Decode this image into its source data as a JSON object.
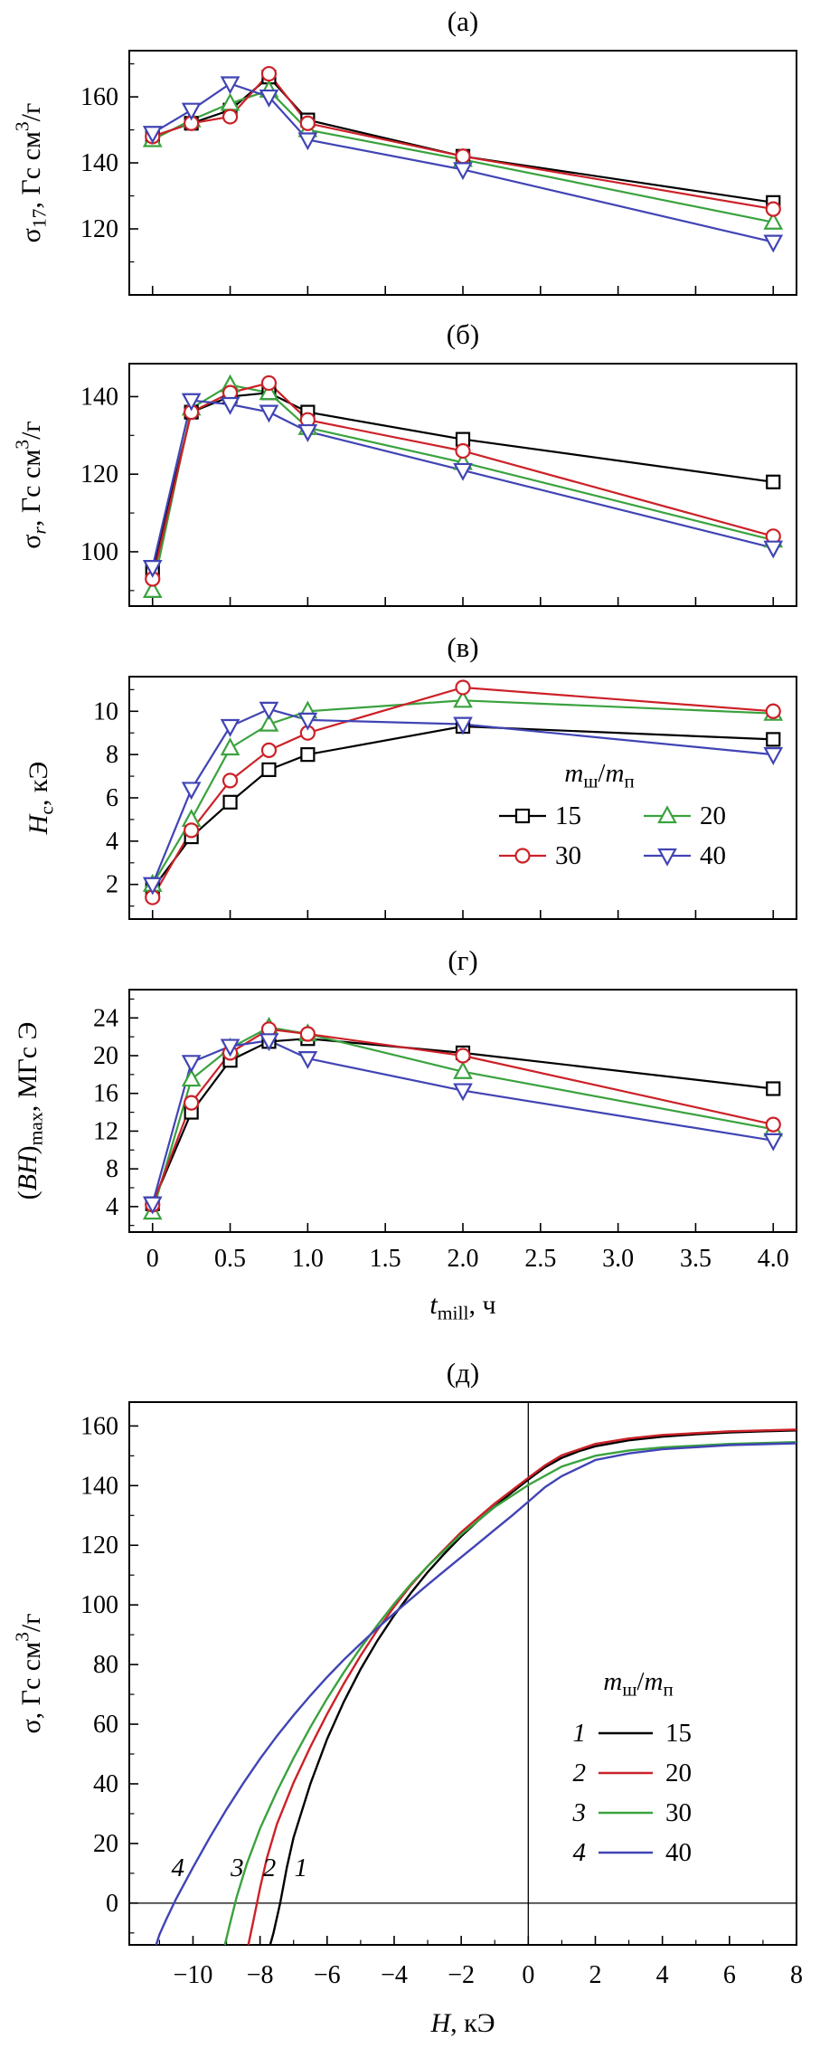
{
  "colors": {
    "black": "#000000",
    "red": "#cc2128",
    "green": "#3aa23e",
    "blue": "#4144b4"
  },
  "chart_data": [
    {
      "id": "a",
      "type": "line",
      "title": "(а)",
      "ylabel": [
        {
          "t": "σ"
        },
        {
          "t": "17",
          "s": "sub"
        },
        {
          "t": ", Гс см"
        },
        {
          "t": "3",
          "s": "sup"
        },
        {
          "t": "/г"
        }
      ],
      "ylim": [
        100,
        174
      ],
      "yticks": [
        120,
        140,
        160
      ],
      "ytick_labels": [
        "120",
        "140",
        "160"
      ],
      "xlim": [
        -0.15,
        4.15
      ],
      "xticks": [
        0,
        0.5,
        1,
        1.5,
        2,
        2.5,
        3,
        3.5,
        4
      ],
      "x": [
        0,
        0.25,
        0.5,
        0.75,
        1,
        2,
        4
      ],
      "series": [
        {
          "name": "15",
          "color_key": "black",
          "marker": "square",
          "values": [
            148,
            152,
            156,
            166,
            153,
            142,
            128
          ]
        },
        {
          "name": "20",
          "color_key": "green",
          "marker": "triangle-up",
          "values": [
            147,
            153,
            158,
            162,
            150,
            141,
            122
          ]
        },
        {
          "name": "30",
          "color_key": "red",
          "marker": "circle",
          "values": [
            148,
            152,
            154,
            167,
            152,
            142,
            126
          ]
        },
        {
          "name": "40",
          "color_key": "blue",
          "marker": "triangle-down",
          "values": [
            149,
            156,
            164,
            160,
            147,
            138,
            116
          ]
        }
      ]
    },
    {
      "id": "b",
      "type": "line",
      "title": "(б)",
      "ylabel": [
        {
          "t": "σ"
        },
        {
          "t": "r",
          "s": "isub"
        },
        {
          "t": ", Гс см"
        },
        {
          "t": "3",
          "s": "sup"
        },
        {
          "t": "/г"
        }
      ],
      "ylim": [
        86,
        148.5
      ],
      "yticks": [
        100,
        120,
        140
      ],
      "ytick_labels": [
        "100",
        "120",
        "140"
      ],
      "xlim": [
        -0.15,
        4.15
      ],
      "xticks": [
        0,
        0.5,
        1,
        1.5,
        2,
        2.5,
        3,
        3.5,
        4
      ],
      "x": [
        0,
        0.25,
        0.5,
        0.75,
        1,
        2,
        4
      ],
      "series": [
        {
          "name": "15",
          "color_key": "black",
          "marker": "square",
          "values": [
            95,
            136,
            140,
            141,
            136,
            129,
            118
          ]
        },
        {
          "name": "20",
          "color_key": "green",
          "marker": "triangle-up",
          "values": [
            90,
            137,
            143,
            141,
            132,
            123,
            103
          ]
        },
        {
          "name": "30",
          "color_key": "red",
          "marker": "circle",
          "values": [
            93,
            136,
            141,
            143.5,
            134,
            126,
            104
          ]
        },
        {
          "name": "40",
          "color_key": "blue",
          "marker": "triangle-down",
          "values": [
            96,
            139,
            138,
            136,
            131,
            121,
            101
          ]
        }
      ]
    },
    {
      "id": "c",
      "type": "line",
      "title": "(в)",
      "ylabel": [
        {
          "t": "H",
          "s": "i"
        },
        {
          "t": "c",
          "s": "sub"
        },
        {
          "t": ", кЭ"
        }
      ],
      "ylim": [
        0.4,
        11.6
      ],
      "yticks": [
        2,
        4,
        6,
        8,
        10
      ],
      "ytick_labels": [
        "2",
        "4",
        "6",
        "8",
        "10"
      ],
      "xlim": [
        -0.15,
        4.15
      ],
      "xticks": [
        0,
        0.5,
        1,
        1.5,
        2,
        2.5,
        3,
        3.5,
        4
      ],
      "x": [
        0,
        0.25,
        0.5,
        0.75,
        1,
        2,
        4
      ],
      "series": [
        {
          "name": "15",
          "color_key": "black",
          "marker": "square",
          "values": [
            1.8,
            4.2,
            5.8,
            7.3,
            8.0,
            9.3,
            8.7
          ]
        },
        {
          "name": "20",
          "color_key": "green",
          "marker": "triangle-up",
          "values": [
            2.0,
            5.0,
            8.3,
            9.4,
            10.0,
            10.5,
            9.9
          ]
        },
        {
          "name": "30",
          "color_key": "red",
          "marker": "circle",
          "values": [
            1.4,
            4.5,
            6.8,
            8.2,
            9.0,
            11.1,
            10.0
          ]
        },
        {
          "name": "40",
          "color_key": "blue",
          "marker": "triangle-down",
          "values": [
            2.0,
            6.4,
            9.3,
            10.1,
            9.6,
            9.4,
            8.0
          ]
        }
      ],
      "legend": {
        "header": [
          {
            "t": "m",
            "s": "i"
          },
          {
            "t": "ш",
            "s": "sub"
          },
          {
            "t": "/"
          },
          {
            "t": "m",
            "s": "i"
          },
          {
            "t": "п",
            "s": "sub"
          }
        ],
        "items": [
          {
            "label": "15"
          },
          {
            "label": "20"
          },
          {
            "label": "30"
          },
          {
            "label": "40"
          }
        ]
      }
    },
    {
      "id": "d",
      "type": "line",
      "title": "(г)",
      "ylabel": [
        {
          "t": "("
        },
        {
          "t": "BH",
          "s": "i"
        },
        {
          "t": ")"
        },
        {
          "t": "max",
          "s": "sub"
        },
        {
          "t": ", МГс Э"
        }
      ],
      "xlabel": [
        {
          "t": "t",
          "s": "i"
        },
        {
          "t": "mill",
          "s": "sub"
        },
        {
          "t": ", ч"
        }
      ],
      "ylim": [
        1.3,
        27
      ],
      "yticks": [
        4,
        8,
        12,
        16,
        20,
        24
      ],
      "ytick_labels": [
        "4",
        "8",
        "12",
        "16",
        "20",
        "24"
      ],
      "xlim": [
        -0.15,
        4.15
      ],
      "xticks": [
        0,
        0.5,
        1,
        1.5,
        2,
        2.5,
        3,
        3.5,
        4
      ],
      "xtick_labels": [
        "0",
        "0.5",
        "1.0",
        "1.5",
        "2.0",
        "2.5",
        "3.0",
        "3.5",
        "4.0"
      ],
      "x": [
        0,
        0.25,
        0.5,
        0.75,
        1,
        2,
        4
      ],
      "series": [
        {
          "name": "15",
          "color_key": "black",
          "marker": "square",
          "values": [
            4.3,
            14.0,
            19.5,
            21.5,
            21.8,
            20.3,
            16.5
          ]
        },
        {
          "name": "20",
          "color_key": "green",
          "marker": "triangle-up",
          "values": [
            3.4,
            17.5,
            20.8,
            23.0,
            22.3,
            18.3,
            12.2
          ]
        },
        {
          "name": "30",
          "color_key": "red",
          "marker": "circle",
          "values": [
            4.2,
            15.0,
            20.3,
            22.8,
            22.3,
            20.0,
            12.7
          ]
        },
        {
          "name": "40",
          "color_key": "blue",
          "marker": "triangle-down",
          "values": [
            4.3,
            19.3,
            21.0,
            21.6,
            19.7,
            16.3,
            11.0
          ]
        }
      ]
    },
    {
      "id": "e",
      "type": "curves",
      "title": "(д)",
      "ylabel": [
        {
          "t": "σ"
        },
        {
          "t": ", Гс см"
        },
        {
          "t": "3",
          "s": "sup"
        },
        {
          "t": "/г"
        }
      ],
      "xlabel": [
        {
          "t": "H",
          "s": "i"
        },
        {
          "t": ", кЭ"
        }
      ],
      "ylim": [
        -14,
        168
      ],
      "yticks": [
        0,
        20,
        40,
        60,
        80,
        100,
        120,
        140,
        160
      ],
      "ytick_labels": [
        "0",
        "20",
        "40",
        "60",
        "80",
        "100",
        "120",
        "140",
        "160"
      ],
      "xlim": [
        -11.9,
        8
      ],
      "xticks": [
        -10,
        -8,
        -6,
        -4,
        -2,
        0,
        2,
        4,
        6,
        8
      ],
      "xtick_labels": [
        "−10",
        "−8",
        "−6",
        "−4",
        "−2",
        "0",
        "2",
        "4",
        "6",
        "8"
      ],
      "zero_lines": true,
      "curves": [
        {
          "num": "1",
          "name": "15",
          "color_key": "black",
          "points": [
            [
              8,
              158.5
            ],
            [
              7,
              158.2
            ],
            [
              6,
              157.8
            ],
            [
              5,
              157.2
            ],
            [
              4,
              156.4
            ],
            [
              3,
              155.2
            ],
            [
              2,
              153.2
            ],
            [
              1.5,
              151.5
            ],
            [
              1,
              149.3
            ],
            [
              0.5,
              146.2
            ],
            [
              0,
              142
            ],
            [
              -0.5,
              137.6
            ],
            [
              -1,
              133
            ],
            [
              -1.5,
              128.2
            ],
            [
              -2,
              123
            ],
            [
              -2.5,
              117.2
            ],
            [
              -3,
              111
            ],
            [
              -3.5,
              104
            ],
            [
              -4,
              96.5
            ],
            [
              -4.5,
              88
            ],
            [
              -5,
              78.5
            ],
            [
              -5.5,
              67.5
            ],
            [
              -6,
              55
            ],
            [
              -6.5,
              40
            ],
            [
              -7,
              22
            ],
            [
              -7.2,
              12
            ],
            [
              -7.4,
              0
            ],
            [
              -7.6,
              -10
            ],
            [
              -7.7,
              -14
            ]
          ]
        },
        {
          "num": "2",
          "name": "20",
          "color_key": "red",
          "points": [
            [
              8,
              158.8
            ],
            [
              6,
              158.2
            ],
            [
              4,
              157
            ],
            [
              3,
              155.8
            ],
            [
              2,
              154
            ],
            [
              1,
              150.2
            ],
            [
              0.5,
              146.8
            ],
            [
              0,
              142.6
            ],
            [
              -1,
              134
            ],
            [
              -2,
              124.4
            ],
            [
              -3,
              113
            ],
            [
              -3.5,
              106.6
            ],
            [
              -4,
              99.4
            ],
            [
              -4.5,
              91.6
            ],
            [
              -5,
              83
            ],
            [
              -5.5,
              73.6
            ],
            [
              -6,
              63.4
            ],
            [
              -6.5,
              52.4
            ],
            [
              -7,
              40.4
            ],
            [
              -7.5,
              26.4
            ],
            [
              -7.8,
              15
            ],
            [
              -8,
              5
            ],
            [
              -8.2,
              -6
            ],
            [
              -8.35,
              -14
            ]
          ]
        },
        {
          "num": "3",
          "name": "30",
          "color_key": "green",
          "points": [
            [
              8,
              154.6
            ],
            [
              6,
              154
            ],
            [
              4,
              152.8
            ],
            [
              3,
              151.8
            ],
            [
              2,
              150
            ],
            [
              1,
              146.4
            ],
            [
              0,
              140.2
            ],
            [
              -1,
              132.8
            ],
            [
              -2,
              123.6
            ],
            [
              -3,
              113
            ],
            [
              -3.5,
              107
            ],
            [
              -4,
              100.4
            ],
            [
              -4.5,
              93.2
            ],
            [
              -5,
              85.6
            ],
            [
              -5.5,
              77.4
            ],
            [
              -6,
              68.6
            ],
            [
              -6.5,
              59
            ],
            [
              -7,
              48.6
            ],
            [
              -7.5,
              37.4
            ],
            [
              -8,
              25
            ],
            [
              -8.4,
              13
            ],
            [
              -8.7,
              2
            ],
            [
              -8.9,
              -7
            ],
            [
              -9.05,
              -14
            ]
          ]
        },
        {
          "num": "4",
          "name": "40",
          "color_key": "blue",
          "points": [
            [
              8,
              154.2
            ],
            [
              6,
              153.6
            ],
            [
              4,
              152.2
            ],
            [
              3,
              150.8
            ],
            [
              2,
              148.6
            ],
            [
              1,
              143.2
            ],
            [
              0.5,
              139.5
            ],
            [
              0,
              134.6
            ],
            [
              -0.5,
              129.8
            ],
            [
              -1,
              125.2
            ],
            [
              -1.5,
              120.6
            ],
            [
              -2,
              116
            ],
            [
              -2.5,
              111.4
            ],
            [
              -3,
              106.8
            ],
            [
              -3.5,
              102
            ],
            [
              -4,
              97.2
            ],
            [
              -4.5,
              92.2
            ],
            [
              -5,
              87
            ],
            [
              -5.5,
              81.6
            ],
            [
              -6,
              75.8
            ],
            [
              -6.5,
              69.6
            ],
            [
              -7,
              63
            ],
            [
              -7.5,
              56
            ],
            [
              -8,
              48.4
            ],
            [
              -8.5,
              40.2
            ],
            [
              -9,
              31.4
            ],
            [
              -9.5,
              22
            ],
            [
              -10,
              12
            ],
            [
              -10.5,
              1.5
            ],
            [
              -10.8,
              -5.5
            ],
            [
              -11,
              -10.5
            ],
            [
              -11.1,
              -14
            ]
          ]
        }
      ],
      "curve_labels": [
        {
          "text": "4",
          "x": -10.45,
          "y": 9
        },
        {
          "text": "3",
          "x": -8.68,
          "y": 9
        },
        {
          "text": "2",
          "x": -7.72,
          "y": 9
        },
        {
          "text": "1",
          "x": -6.78,
          "y": 9
        }
      ],
      "legend": {
        "header": [
          {
            "t": "m",
            "s": "i"
          },
          {
            "t": "ш",
            "s": "sub"
          },
          {
            "t": "/"
          },
          {
            "t": "m",
            "s": "i"
          },
          {
            "t": "п",
            "s": "sub"
          }
        ],
        "items": [
          {
            "num": "1",
            "label": "15",
            "color_key": "black"
          },
          {
            "num": "2",
            "label": "20",
            "color_key": "red"
          },
          {
            "num": "3",
            "label": "30",
            "color_key": "green"
          },
          {
            "num": "4",
            "label": "40",
            "color_key": "blue"
          }
        ]
      }
    }
  ]
}
